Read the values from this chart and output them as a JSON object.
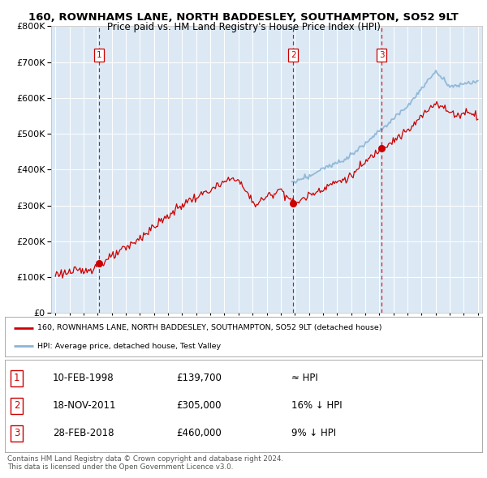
{
  "title1": "160, ROWNHAMS LANE, NORTH BADDESLEY, SOUTHAMPTON, SO52 9LT",
  "title2": "Price paid vs. HM Land Registry's House Price Index (HPI)",
  "legend_line1": "160, ROWNHAMS LANE, NORTH BADDESLEY, SOUTHAMPTON, SO52 9LT (detached house)",
  "legend_line2": "HPI: Average price, detached house, Test Valley",
  "sales": [
    {
      "num": 1,
      "date": "10-FEB-1998",
      "price": 139700,
      "year": 1998.11,
      "relation": "≈ HPI"
    },
    {
      "num": 2,
      "date": "18-NOV-2011",
      "price": 305000,
      "year": 2011.88,
      "relation": "16% ↓ HPI"
    },
    {
      "num": 3,
      "date": "28-FEB-2018",
      "price": 460000,
      "year": 2018.16,
      "relation": "9% ↓ HPI"
    }
  ],
  "footer1": "Contains HM Land Registry data © Crown copyright and database right 2024.",
  "footer2": "This data is licensed under the Open Government Licence v3.0.",
  "ylim": [
    0,
    800000
  ],
  "yticks": [
    0,
    100000,
    200000,
    300000,
    400000,
    500000,
    600000,
    700000,
    800000
  ],
  "xlim_start": 1994.7,
  "xlim_end": 2025.3,
  "plot_bg": "#dce9f5",
  "red_line_color": "#cc0000",
  "blue_line_color": "#8ab4d4",
  "grid_color": "#ffffff",
  "marker_color": "#cc0000",
  "dashed_color": "#cc0000",
  "red_start_year": 1995.0,
  "red_end_year": 2025.0,
  "blue_start_year": 2011.8,
  "blue_end_year": 2025.0
}
